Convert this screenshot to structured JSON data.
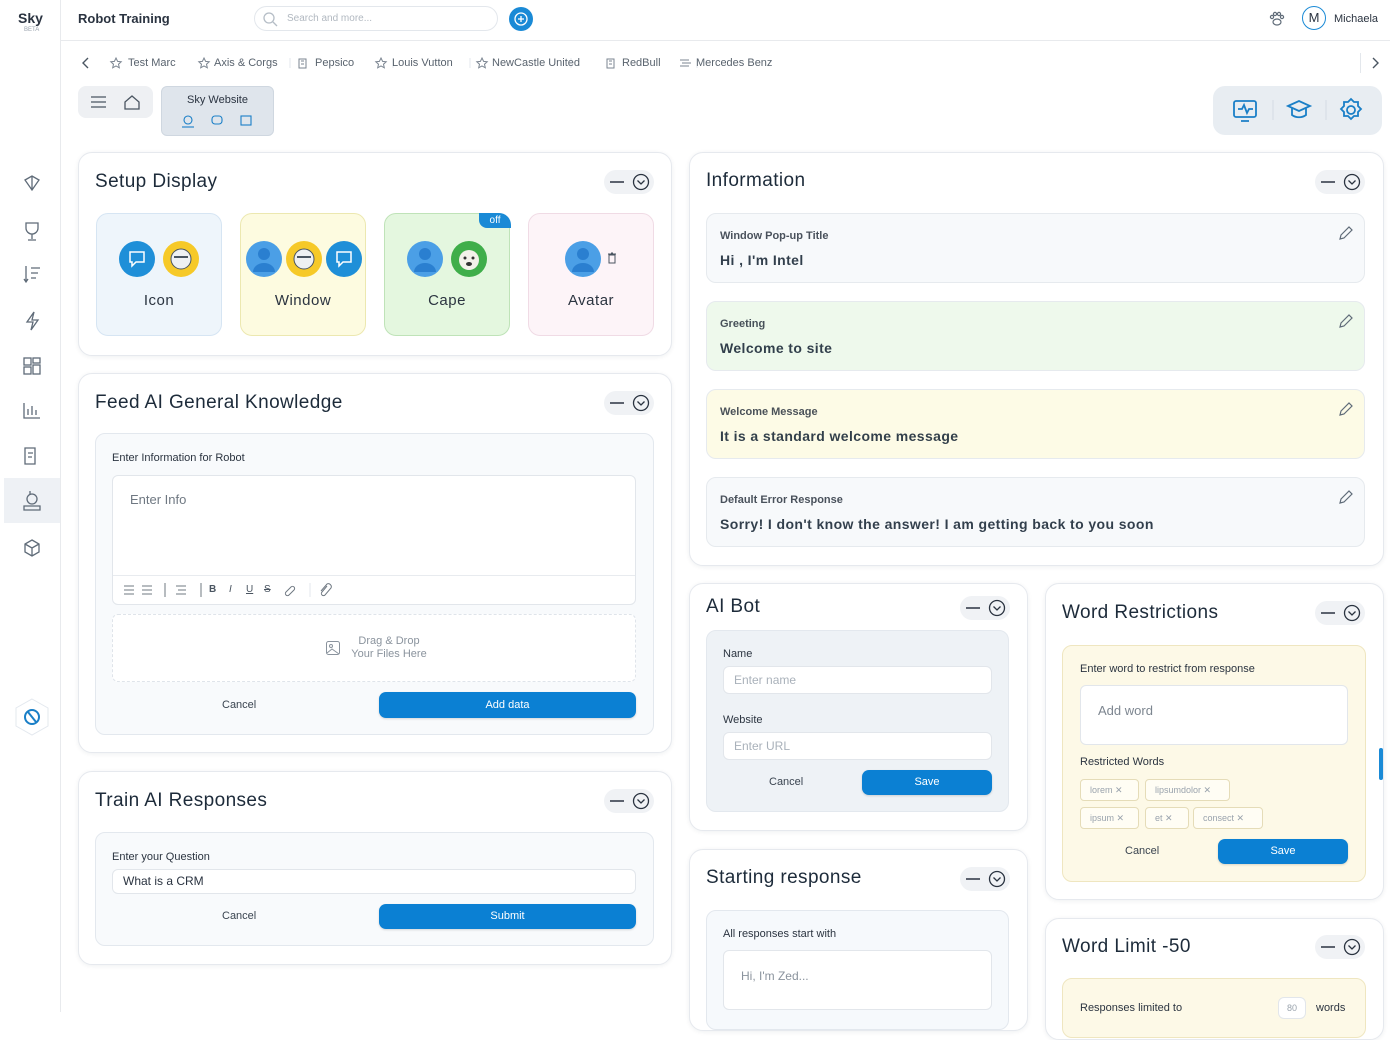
{
  "app": {
    "logo": "Sky",
    "logo_sub": "BETA",
    "page_title": "Robot Training",
    "search_placeholder": "Search and more...",
    "user_initial": "M",
    "user_name": "Michaela"
  },
  "tabs": [
    "Test Marc",
    "Axis & Corgs",
    "Pepsico",
    "Louis Vutton",
    "NewCastle United",
    "RedBull",
    "Mercedes Benz"
  ],
  "site_chip": "Sky Website",
  "setup_display": {
    "title": "Setup Display",
    "options": [
      {
        "label": "Icon"
      },
      {
        "label": "Window"
      },
      {
        "label": "Cape",
        "badge": "off"
      },
      {
        "label": "Avatar"
      }
    ]
  },
  "feed": {
    "title": "Feed AI General Knowledge",
    "field_label": "Enter Information for Robot",
    "placeholder": "Enter Info",
    "toolbar": [
      "B",
      "I",
      "U",
      "S"
    ],
    "drop_line1": "Drag & Drop",
    "drop_line2": "Your Files Here",
    "cancel": "Cancel",
    "submit": "Add data"
  },
  "train": {
    "title": "Train AI Responses",
    "field_label": "Enter your Question",
    "value": "What is a CRM",
    "cancel": "Cancel",
    "submit": "Submit"
  },
  "information": {
    "title": "Information",
    "items": [
      {
        "label": "Window Pop-up Title",
        "value": "Hi , I'm Intel"
      },
      {
        "label": "Greeting",
        "value": "Welcome to site"
      },
      {
        "label": "Welcome Message",
        "value": "It is a standard welcome message"
      },
      {
        "label": "Default Error Response",
        "value": "Sorry! I don't know the answer! I am getting back to you soon"
      }
    ]
  },
  "ai_bot": {
    "title": "AI Bot",
    "name_label": "Name",
    "name_placeholder": "Enter name",
    "website_label": "Website",
    "website_placeholder": "Enter URL",
    "cancel": "Cancel",
    "submit": "Save"
  },
  "starting": {
    "title": "Starting response",
    "field_label": "All responses start with",
    "placeholder": "Hi, I'm Zed..."
  },
  "word_restrictions": {
    "title": "Word Restrictions",
    "field_label": "Enter word to restrict from response",
    "placeholder": "Add word",
    "list_label": "Restricted Words",
    "words": [
      "lorem",
      "lipsumdolor",
      "ipsum",
      "et",
      "consect"
    ],
    "cancel": "Cancel",
    "submit": "Save"
  },
  "word_limit": {
    "title": "Word Limit -50",
    "label": "Responses limited to",
    "value": "80",
    "unit": "words"
  }
}
